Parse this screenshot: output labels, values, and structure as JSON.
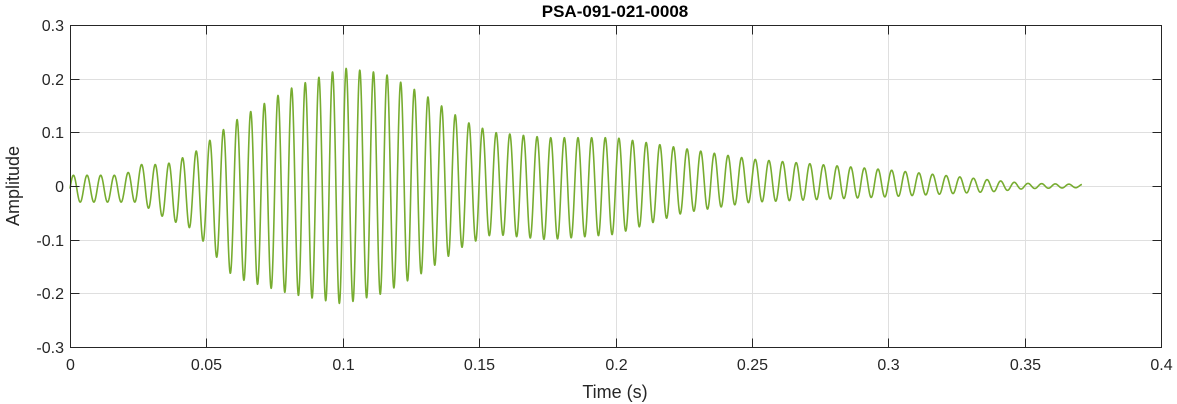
{
  "chart_data": {
    "type": "line",
    "title": "PSA-091-021-0008",
    "xlabel": "Time (s)",
    "ylabel": "Amplitude",
    "xlim": [
      0,
      0.4
    ],
    "ylim": [
      -0.3,
      0.3
    ],
    "xticks": [
      0,
      0.05,
      0.1,
      0.15,
      0.2,
      0.25,
      0.3,
      0.35,
      0.4
    ],
    "xtick_labels": [
      "0",
      "0.05",
      "0.1",
      "0.15",
      "0.2",
      "0.25",
      "0.3",
      "0.35",
      "0.4"
    ],
    "yticks": [
      -0.3,
      -0.2,
      -0.1,
      0,
      0.1,
      0.2,
      0.3
    ],
    "ytick_labels": [
      "-0.3",
      "-0.2",
      "-0.1",
      "0",
      "0.1",
      "0.2",
      "0.3"
    ],
    "grid": true,
    "color": "#77ac30",
    "series": [
      {
        "time_range": [
          0,
          0.371
        ],
        "envelope": {
          "t": [
            0,
            0.02,
            0.025,
            0.035,
            0.045,
            0.06,
            0.08,
            0.1,
            0.115,
            0.13,
            0.145,
            0.155,
            0.175,
            0.2,
            0.225,
            0.25,
            0.275,
            0.3,
            0.32,
            0.34,
            0.35,
            0.371
          ],
          "upper": [
            0.02,
            0.02,
            0.04,
            0.04,
            0.06,
            0.12,
            0.18,
            0.22,
            0.21,
            0.17,
            0.12,
            0.1,
            0.09,
            0.09,
            0.07,
            0.05,
            0.04,
            0.03,
            0.02,
            0.01,
            0.005,
            0.003
          ],
          "lower": [
            -0.03,
            -0.03,
            -0.03,
            -0.06,
            -0.08,
            -0.17,
            -0.2,
            -0.22,
            -0.2,
            -0.16,
            -0.11,
            -0.09,
            -0.1,
            -0.09,
            -0.05,
            -0.03,
            -0.025,
            -0.02,
            -0.015,
            -0.01,
            -0.005,
            -0.003
          ]
        },
        "dominant_frequency_hz": 200
      }
    ]
  }
}
